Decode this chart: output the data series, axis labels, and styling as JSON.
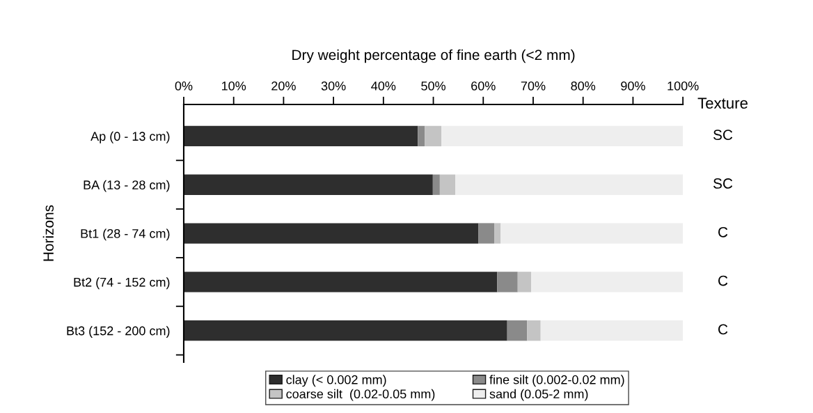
{
  "chart_data": {
    "type": "bar",
    "orientation": "horizontal",
    "stacked": true,
    "xlabel": "Dry weight percentage of fine earth (<2 mm)",
    "ylabel": "Horizons",
    "categories": [
      "Ap (0 - 13 cm)",
      "BA (13 - 28 cm)",
      "Bt1 (28 - 74 cm)",
      "Bt2 (74 - 152 cm)",
      "Bt3 (152 - 200 cm)"
    ],
    "series": [
      {
        "name": "clay (< 0.002 mm)",
        "color": "#2e2e2e",
        "values": [
          46.9,
          49.9,
          59.0,
          62.8,
          64.8
        ]
      },
      {
        "name": "fine silt (0.002-0.02 mm)",
        "color": "#8a8a8a",
        "values": [
          1.4,
          1.4,
          3.2,
          4.1,
          4.0
        ]
      },
      {
        "name": "coarse silt  (0.02-0.05 mm)",
        "color": "#c4c4c4",
        "values": [
          3.3,
          3.1,
          1.3,
          2.7,
          2.7
        ]
      },
      {
        "name": "sand (0.05-2 mm)",
        "color": "#eeeeee",
        "values": [
          48.4,
          45.6,
          36.5,
          30.4,
          28.5
        ]
      }
    ],
    "xlim": [
      0,
      100
    ],
    "xticks": [
      {
        "value": 0,
        "label": "0%"
      },
      {
        "value": 10,
        "label": "10%"
      },
      {
        "value": 20,
        "label": "20%"
      },
      {
        "value": 30,
        "label": "30%"
      },
      {
        "value": 40,
        "label": "40%"
      },
      {
        "value": 50,
        "label": "50%"
      },
      {
        "value": 60,
        "label": "60%"
      },
      {
        "value": 70,
        "label": "70%"
      },
      {
        "value": 80,
        "label": "80%"
      },
      {
        "value": 90,
        "label": "90%"
      },
      {
        "value": 100,
        "label": "100%"
      }
    ],
    "annotations": [
      "Texture",
      "SC",
      "SC",
      "C",
      "C",
      "C"
    ],
    "legend": "bottom",
    "grid": false
  }
}
